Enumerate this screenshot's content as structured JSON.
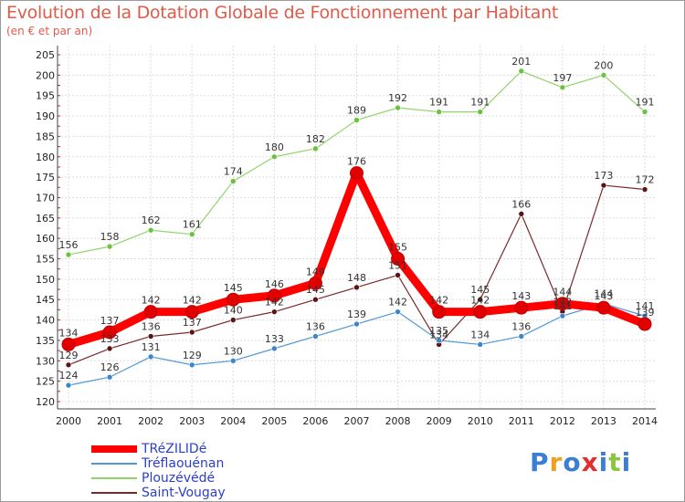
{
  "header": {
    "title": "Evolution de la Dotation Globale de Fonctionnement par Habitant",
    "subtitle": "(en € et par an)"
  },
  "logo": {
    "text": "Proxiti"
  },
  "colors": {
    "TRéZILIDé": "#ff0000",
    "Tréflaouénan": "#4f97d6",
    "Plouzévédé": "#8fd46a",
    "Saint-Vougay": "#7a2a2a"
  },
  "chart_data": {
    "type": "line",
    "title": "Evolution de la Dotation Globale de Fonctionnement par Habitant",
    "subtitle": "(en € et par an)",
    "xlabel": "",
    "ylabel": "",
    "x": [
      "2000",
      "2001",
      "2002",
      "2003",
      "2004",
      "2005",
      "2006",
      "2007",
      "2008",
      "2009",
      "2010",
      "2011",
      "2012",
      "2013",
      "2014"
    ],
    "ylim": [
      120,
      205
    ],
    "yticks": [
      120,
      125,
      130,
      135,
      140,
      145,
      150,
      155,
      160,
      165,
      170,
      175,
      180,
      185,
      190,
      195,
      200,
      205
    ],
    "grid": true,
    "legend": "bottom-left",
    "series": [
      {
        "name": "TRéZILIDé",
        "values": [
          134,
          137,
          142,
          142,
          145,
          146,
          149,
          176,
          155,
          142,
          142,
          143,
          144,
          143,
          139
        ]
      },
      {
        "name": "Tréflaouénan",
        "values": [
          124,
          126,
          131,
          129,
          130,
          133,
          136,
          139,
          142,
          135,
          134,
          136,
          141,
          144,
          141
        ]
      },
      {
        "name": "Plouzévédé",
        "values": [
          156,
          158,
          162,
          161,
          174,
          180,
          182,
          189,
          192,
          191,
          191,
          201,
          197,
          200,
          191
        ]
      },
      {
        "name": "Saint-Vougay",
        "values": [
          129,
          133,
          136,
          137,
          140,
          142,
          145,
          148,
          151,
          134,
          145,
          166,
          142,
          173,
          172
        ]
      }
    ]
  }
}
